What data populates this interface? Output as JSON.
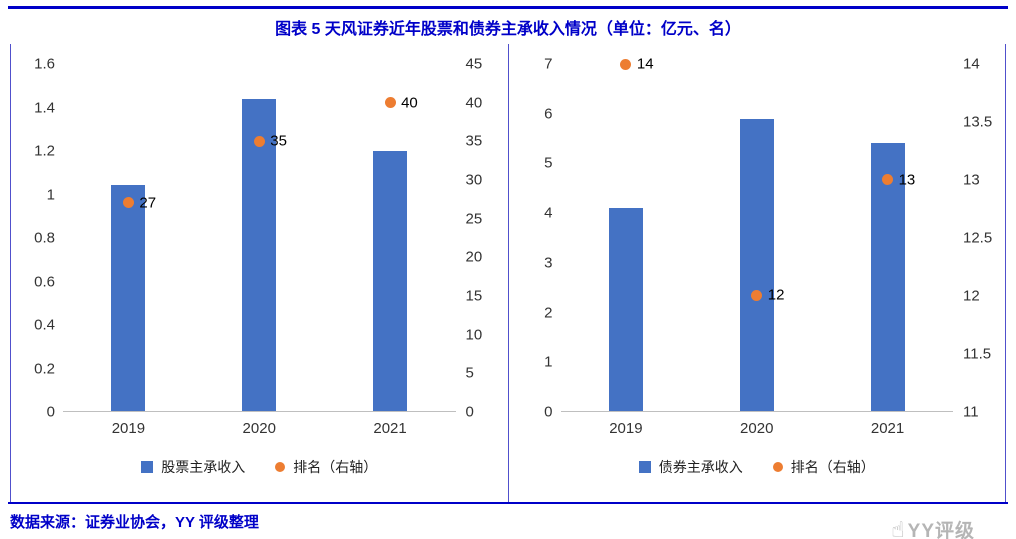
{
  "header": {
    "title": "图表 5 天风证券近年股票和债券主承收入情况（单位：亿元、名）"
  },
  "footer": {
    "source_text": "数据来源：证券业协会，YY 评级整理"
  },
  "watermark": {
    "icon_glyph": "☝",
    "text": "YY评级"
  },
  "colors": {
    "accent": "#0000C8",
    "bar": "#4472C4",
    "dot": "#ED7D31",
    "axis_text": "#333333",
    "baseline": "#BFBFBF"
  },
  "chart_data": [
    {
      "type": "bar",
      "categories": [
        "2019",
        "2020",
        "2021"
      ],
      "series": [
        {
          "name": "股票主承收入",
          "kind": "bar",
          "axis": "left",
          "values": [
            1.04,
            1.44,
            1.2
          ]
        },
        {
          "name": "排名（右轴）",
          "kind": "scatter",
          "axis": "right",
          "values": [
            27,
            35,
            40
          ],
          "point_labels": [
            "27",
            "35",
            "40"
          ]
        }
      ],
      "left_axis": {
        "min": 0,
        "max": 1.6,
        "ticks": [
          "0",
          "0.2",
          "0.4",
          "0.6",
          "0.8",
          "1",
          "1.2",
          "1.4",
          "1.6"
        ]
      },
      "right_axis": {
        "min": 0,
        "max": 45,
        "ticks": [
          "0",
          "5",
          "10",
          "15",
          "20",
          "25",
          "30",
          "35",
          "40",
          "45"
        ]
      },
      "legend_position": "bottom",
      "grid": false
    },
    {
      "type": "bar",
      "categories": [
        "2019",
        "2020",
        "2021"
      ],
      "series": [
        {
          "name": "债券主承收入",
          "kind": "bar",
          "axis": "left",
          "values": [
            4.1,
            5.9,
            5.4
          ]
        },
        {
          "name": "排名（右轴）",
          "kind": "scatter",
          "axis": "right",
          "values": [
            14,
            12,
            13
          ],
          "point_labels": [
            "14",
            "12",
            "13"
          ]
        }
      ],
      "left_axis": {
        "min": 0,
        "max": 7,
        "ticks": [
          "0",
          "1",
          "2",
          "3",
          "4",
          "5",
          "6",
          "7"
        ]
      },
      "right_axis": {
        "min": 11,
        "max": 14,
        "ticks": [
          "11",
          "11.5",
          "12",
          "12.5",
          "13",
          "13.5",
          "14"
        ]
      },
      "legend_position": "bottom",
      "grid": false
    }
  ]
}
